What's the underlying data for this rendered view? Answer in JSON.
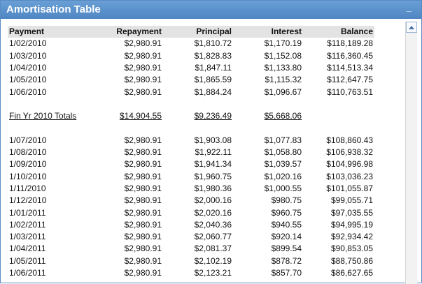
{
  "window": {
    "title": "Amortisation Table",
    "minimize_label": "_"
  },
  "table": {
    "headers": [
      "Payment",
      "Repayment",
      "Principal",
      "Interest",
      "Balance"
    ],
    "rows_a": [
      [
        "1/02/2010",
        "$2,980.91",
        "$1,810.72",
        "$1,170.19",
        "$118,189.28"
      ],
      [
        "1/03/2010",
        "$2,980.91",
        "$1,828.83",
        "$1,152.08",
        "$116,360.45"
      ],
      [
        "1/04/2010",
        "$2,980.91",
        "$1,847.11",
        "$1,133.80",
        "$114,513.34"
      ],
      [
        "1/05/2010",
        "$2,980.91",
        "$1,865.59",
        "$1,115.32",
        "$112,647.75"
      ],
      [
        "1/06/2010",
        "$2,980.91",
        "$1,884.24",
        "$1,096.67",
        "$110,763.51"
      ]
    ],
    "totals": [
      "Fin Yr 2010 Totals",
      "$14,904.55",
      "$9,236.49",
      "$5,668.06",
      ""
    ],
    "rows_b": [
      [
        "1/07/2010",
        "$2,980.91",
        "$1,903.08",
        "$1,077.83",
        "$108,860.43"
      ],
      [
        "1/08/2010",
        "$2,980.91",
        "$1,922.11",
        "$1,058.80",
        "$106,938.32"
      ],
      [
        "1/09/2010",
        "$2,980.91",
        "$1,941.34",
        "$1,039.57",
        "$104,996.98"
      ],
      [
        "1/10/2010",
        "$2,980.91",
        "$1,960.75",
        "$1,020.16",
        "$103,036.23"
      ],
      [
        "1/11/2010",
        "$2,980.91",
        "$1,980.36",
        "$1,000.55",
        "$101,055.87"
      ],
      [
        "1/12/2010",
        "$2,980.91",
        "$2,000.16",
        "$980.75",
        "$99,055.71"
      ],
      [
        "1/01/2011",
        "$2,980.91",
        "$2,020.16",
        "$960.75",
        "$97,035.55"
      ],
      [
        "1/02/2011",
        "$2,980.91",
        "$2,040.36",
        "$940.55",
        "$94,995.19"
      ],
      [
        "1/03/2011",
        "$2,980.91",
        "$2,060.77",
        "$920.14",
        "$92,934.42"
      ],
      [
        "1/04/2011",
        "$2,980.91",
        "$2,081.37",
        "$899.54",
        "$90,853.05"
      ],
      [
        "1/05/2011",
        "$2,980.91",
        "$2,102.19",
        "$878.72",
        "$88,750.86"
      ],
      [
        "1/06/2011",
        "$2,980.91",
        "$2,123.21",
        "$857.70",
        "$86,627.65"
      ]
    ]
  },
  "scrollbar": {
    "up_icon": "triangle-up-icon"
  }
}
